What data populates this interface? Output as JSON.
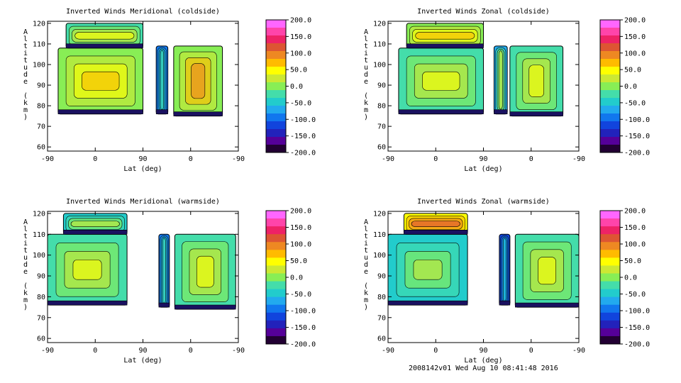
{
  "footer": {
    "text": "2008142v01 Wed Aug 10 08:41:48 2016"
  },
  "colorbar": {
    "ticks": [
      "200.0",
      "150.0",
      "100.0",
      "50.0",
      "0.0",
      "-50.0",
      "-100.0",
      "-150.0",
      "-200.0"
    ],
    "colors": [
      "#ff66ff",
      "#ff44aa",
      "#ee2266",
      "#dd5533",
      "#ee8822",
      "#ffbb00",
      "#ffff00",
      "#cce833",
      "#88ee55",
      "#44ddaa",
      "#22cccc",
      "#22aaee",
      "#1177ee",
      "#1144dd",
      "#2222bb",
      "#550099",
      "#220033"
    ]
  },
  "chart_data": [
    {
      "type": "heatmap",
      "title": "Inverted Winds Meridional (coldside)",
      "xlabel": "Lat (deg)",
      "ylabel": "Altitude (km)",
      "x_ticks": [
        "-90",
        "0",
        "90",
        "0",
        "-90"
      ],
      "y_ticks": [
        "120",
        "110",
        "100",
        "90",
        "80",
        "70",
        "60"
      ],
      "ylim": [
        58,
        121
      ],
      "clim": [
        -200,
        200
      ],
      "colorbar_ticks": [
        "200.0",
        "150.0",
        "100.0",
        "50.0",
        "0.0",
        "-50.0",
        "-100.0",
        "-150.0",
        "-200.0"
      ],
      "grid": false,
      "regions": [
        {
          "lat_start": -70,
          "lat_end": 90,
          "alt_min": 76,
          "alt_max": 108,
          "mean_value": 0
        },
        {
          "lat_start": -55,
          "lat_end": 90,
          "alt_min": 108,
          "alt_max": 120,
          "mean_value": -30
        },
        {
          "lat_start": 115,
          "lat_end": 137,
          "alt_min": 76,
          "alt_max": 109,
          "mean_value": -90
        },
        {
          "lat_start": 148,
          "lat_end": 240,
          "alt_min": 75,
          "alt_max": 109,
          "mean_value": 10
        }
      ]
    },
    {
      "type": "heatmap",
      "title": "Inverted Winds Zonal (coldside)",
      "xlabel": "Lat (deg)",
      "ylabel": "Altitude (km)",
      "x_ticks": [
        "-90",
        "0",
        "90",
        "0",
        "-90"
      ],
      "y_ticks": [
        "120",
        "110",
        "100",
        "90",
        "80",
        "70",
        "60"
      ],
      "ylim": [
        58,
        121
      ],
      "clim": [
        -200,
        200
      ],
      "colorbar_ticks": [
        "200.0",
        "150.0",
        "100.0",
        "50.0",
        "0.0",
        "-50.0",
        "-100.0",
        "-150.0",
        "-200.0"
      ],
      "grid": false,
      "regions": [
        {
          "lat_start": -70,
          "lat_end": 90,
          "alt_min": 76,
          "alt_max": 108,
          "mean_value": -20
        },
        {
          "lat_start": -55,
          "lat_end": 90,
          "alt_min": 108,
          "alt_max": 120,
          "mean_value": -10
        },
        {
          "lat_start": 110,
          "lat_end": 135,
          "alt_min": 76,
          "alt_max": 109,
          "mean_value": -60
        },
        {
          "lat_start": 140,
          "lat_end": 240,
          "alt_min": 75,
          "alt_max": 109,
          "mean_value": -30
        }
      ]
    },
    {
      "type": "heatmap",
      "title": "Inverted Winds Meridional (warmside)",
      "xlabel": "Lat (deg)",
      "ylabel": "Altitude (km)",
      "x_ticks": [
        "-90",
        "0",
        "90",
        "0",
        "-90"
      ],
      "y_ticks": [
        "120",
        "110",
        "100",
        "90",
        "80",
        "70",
        "60"
      ],
      "ylim": [
        58,
        121
      ],
      "clim": [
        -200,
        200
      ],
      "colorbar_ticks": [
        "200.0",
        "150.0",
        "100.0",
        "50.0",
        "0.0",
        "-50.0",
        "-100.0",
        "-150.0",
        "-200.0"
      ],
      "grid": false,
      "regions": [
        {
          "lat_start": -90,
          "lat_end": 60,
          "alt_min": 76,
          "alt_max": 110,
          "mean_value": -20
        },
        {
          "lat_start": -60,
          "lat_end": 60,
          "alt_min": 110,
          "alt_max": 120,
          "mean_value": -50
        },
        {
          "lat_start": 120,
          "lat_end": 140,
          "alt_min": 75,
          "alt_max": 110,
          "mean_value": -100
        },
        {
          "lat_start": 150,
          "lat_end": 265,
          "alt_min": 74,
          "alt_max": 110,
          "mean_value": -30
        }
      ]
    },
    {
      "type": "heatmap",
      "title": "Inverted Winds Zonal (warmside)",
      "xlabel": "Lat (deg)",
      "ylabel": "Altitude (km)",
      "x_ticks": [
        "-90",
        "0",
        "90",
        "0",
        "-90"
      ],
      "y_ticks": [
        "120",
        "110",
        "100",
        "90",
        "80",
        "70",
        "60"
      ],
      "ylim": [
        58,
        121
      ],
      "clim": [
        -200,
        200
      ],
      "colorbar_ticks": [
        "200.0",
        "150.0",
        "100.0",
        "50.0",
        "0.0",
        "-50.0",
        "-100.0",
        "-150.0",
        "-200.0"
      ],
      "grid": false,
      "regions": [
        {
          "lat_start": -90,
          "lat_end": 60,
          "alt_min": 76,
          "alt_max": 110,
          "mean_value": -40
        },
        {
          "lat_start": -60,
          "lat_end": 60,
          "alt_min": 110,
          "alt_max": 120,
          "mean_value": 50
        },
        {
          "lat_start": 120,
          "lat_end": 140,
          "alt_min": 76,
          "alt_max": 110,
          "mean_value": -120
        },
        {
          "lat_start": 150,
          "lat_end": 270,
          "alt_min": 75,
          "alt_max": 110,
          "mean_value": -30
        }
      ]
    }
  ]
}
